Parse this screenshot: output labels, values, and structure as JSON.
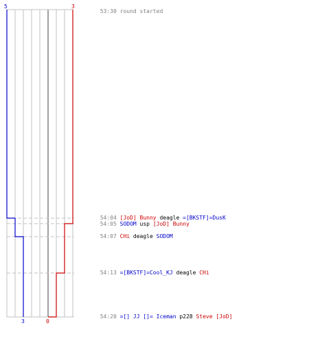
{
  "colors": {
    "team_a": "#0000cc",
    "team_b": "#cc0000",
    "time_text": "#808080",
    "plain_text": "#000000",
    "grid": "#c0c0c0",
    "center_line": "#808080",
    "dashes": "#c0c0c0"
  },
  "timeline": {
    "team_a_start_count": "5",
    "team_b_start_count": "3",
    "team_a_end_count": "3",
    "team_b_end_count": "0"
  },
  "events": [
    {
      "time": "53:30",
      "parts": [
        {
          "text": "round started",
          "team": "none"
        }
      ]
    },
    {
      "time": "54:04",
      "parts": [
        {
          "text": "[JoD] Bunny",
          "team": "b"
        },
        {
          "text": " deagle ",
          "team": "none"
        },
        {
          "text": "=[BKSTF]=DusK",
          "team": "a"
        }
      ]
    },
    {
      "time": "54:05",
      "parts": [
        {
          "text": "SODOM",
          "team": "a"
        },
        {
          "text": " usp ",
          "team": "none"
        },
        {
          "text": "[JoD] Bunny",
          "team": "b"
        }
      ]
    },
    {
      "time": "54:07",
      "parts": [
        {
          "text": "CHi",
          "team": "b"
        },
        {
          "text": " deagle ",
          "team": "none"
        },
        {
          "text": "SODOM",
          "team": "a"
        }
      ]
    },
    {
      "time": "54:13",
      "parts": [
        {
          "text": "=[BKSTF]=Cool_KJ",
          "team": "a"
        },
        {
          "text": " deagle ",
          "team": "none"
        },
        {
          "text": "CHi",
          "team": "b"
        }
      ]
    },
    {
      "time": "54:20",
      "parts": [
        {
          "text": "=[] JJ []=",
          "team": "a"
        },
        {
          "text": " Iceman ",
          "team": "a"
        },
        {
          "text": "p228 ",
          "team": "none"
        },
        {
          "text": "Steve [JoD]",
          "team": "b"
        }
      ]
    }
  ]
}
